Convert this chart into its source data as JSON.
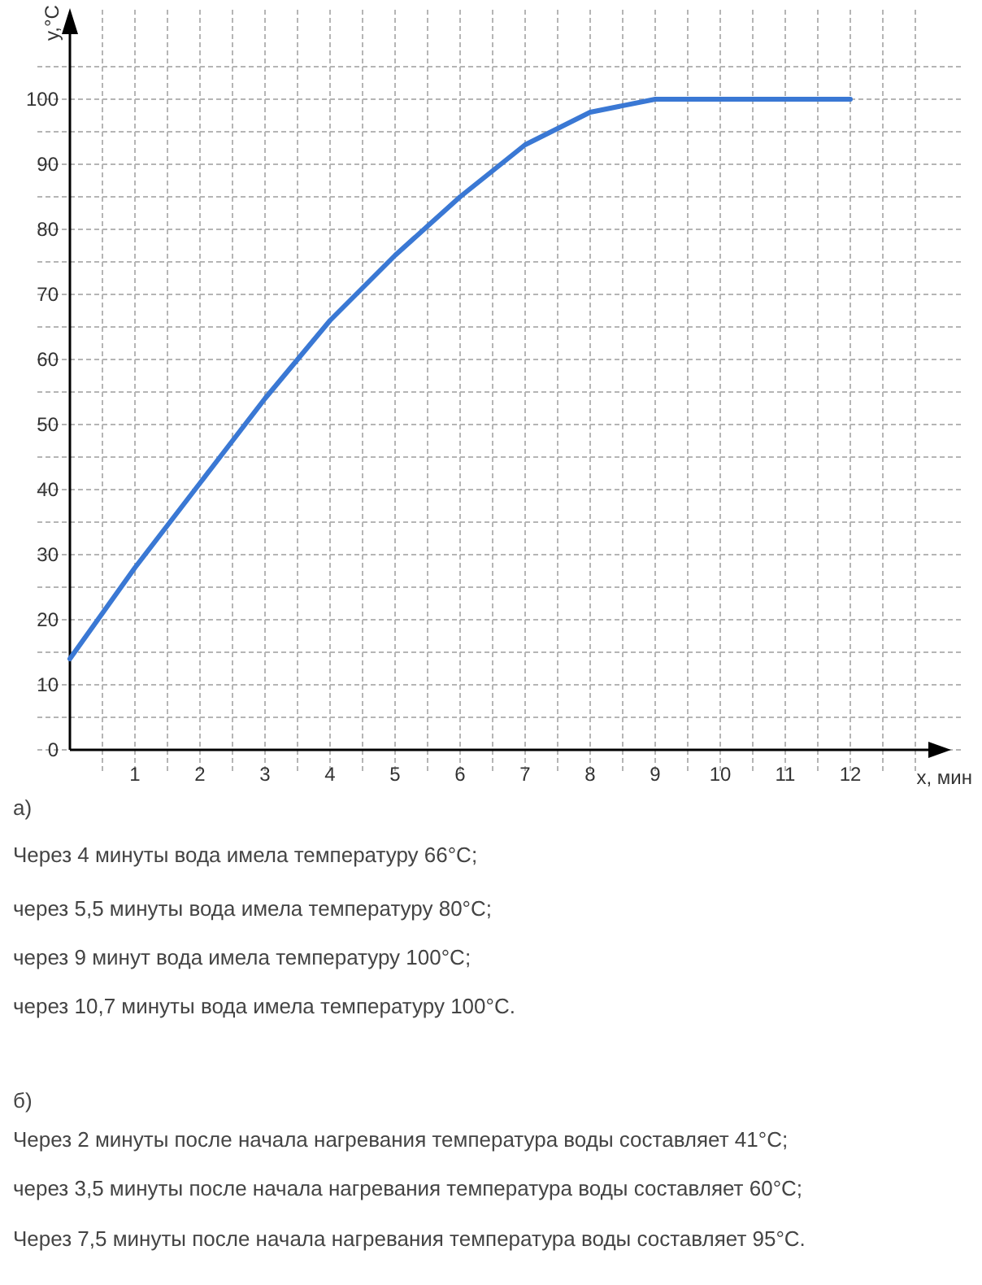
{
  "chart_data": {
    "type": "line",
    "xlabel": "x, мин",
    "ylabel": "y,°C",
    "x": [
      0,
      0.5,
      1,
      1.5,
      2,
      2.5,
      3,
      3.5,
      4,
      4.5,
      5,
      5.5,
      6,
      7,
      8,
      9,
      10,
      11,
      12
    ],
    "series": [
      {
        "color": "#3a78d4",
        "values": [
          14,
          21,
          28,
          34.5,
          41,
          47.5,
          54,
          60,
          66,
          71,
          76,
          80.5,
          85,
          93,
          98,
          100,
          100,
          100,
          100
        ]
      }
    ],
    "xlim": [
      0,
      13.2
    ],
    "ylim": [
      0,
      110
    ],
    "xticks": [
      {
        "value": 0.5,
        "label": null
      },
      1,
      {
        "value": 1.5,
        "label": null
      },
      2,
      {
        "value": 2.5,
        "label": null
      },
      3,
      {
        "value": 3.5,
        "label": null
      },
      4,
      {
        "value": 4.5,
        "label": null
      },
      5,
      {
        "value": 5.5,
        "label": null
      },
      6,
      {
        "value": 6.5,
        "label": null
      },
      7,
      {
        "value": 7.5,
        "label": null
      },
      8,
      {
        "value": 8.5,
        "label": null
      },
      9,
      {
        "value": 9.5,
        "label": null
      },
      10,
      {
        "value": 10.5,
        "label": null
      },
      11,
      {
        "value": 11.5,
        "label": null
      },
      12,
      {
        "value": 12.5,
        "label": null
      },
      {
        "value": 13,
        "label": null
      }
    ],
    "yticks": [
      0,
      {
        "value": 5,
        "label": null
      },
      10,
      {
        "value": 15,
        "label": null
      },
      20,
      {
        "value": 25,
        "label": null
      },
      30,
      {
        "value": 35,
        "label": null
      },
      40,
      {
        "value": 45,
        "label": null
      },
      50,
      {
        "value": 55,
        "label": null
      },
      60,
      {
        "value": 65,
        "label": null
      },
      70,
      {
        "value": 75,
        "label": null
      },
      80,
      {
        "value": 85,
        "label": null
      },
      90,
      {
        "value": 95,
        "label": null
      },
      100,
      {
        "value": 105,
        "label": null
      }
    ],
    "grid": true,
    "marker": "none",
    "line_style": "solid",
    "annotations": [
      "а)",
      "Через 4 минуты вода имела температуру 66°C;",
      "через 5,5 минуты вода имела температуру 80°C;",
      "через 9 минут вода имела температуру 100°C;",
      "через 10,7 минуты вода имела температуру 100°C.",
      "б)",
      "Через 2 минуты после начала нагревания температура воды составляет 41°C;",
      "через 3,5 минуты после начала нагревания температура воды составляет 60°C;",
      "Через 7,5 минуты после начала нагревания температура воды составляет 95°C."
    ]
  }
}
